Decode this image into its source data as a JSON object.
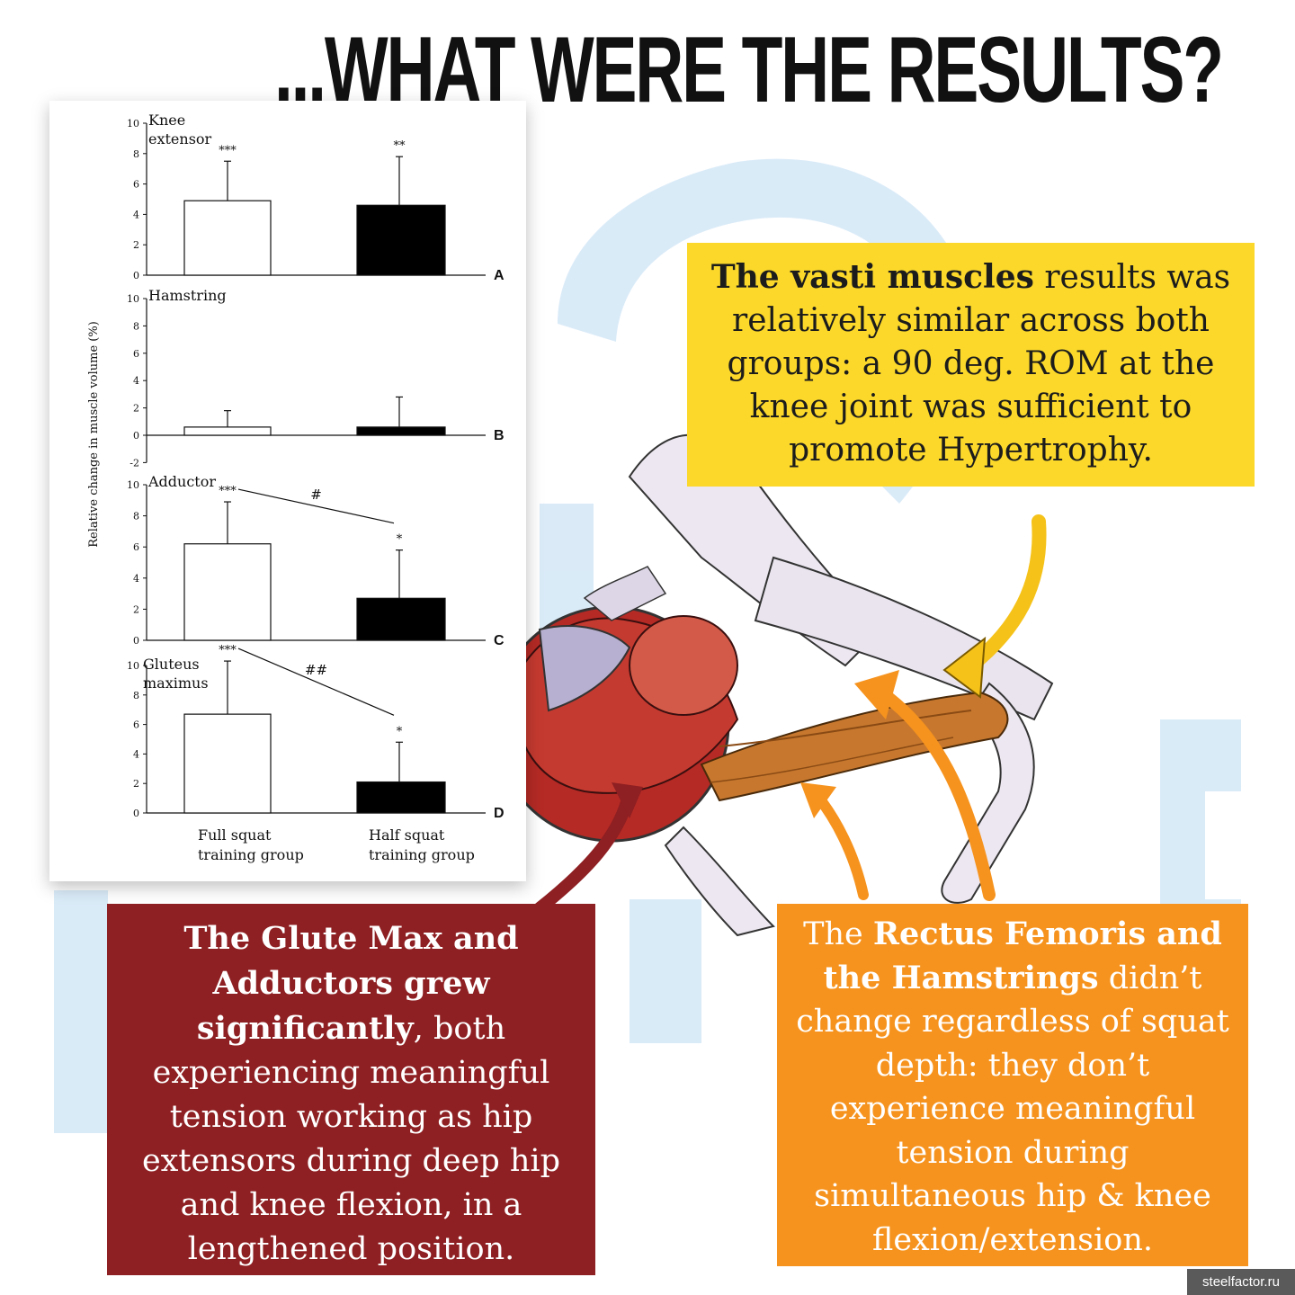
{
  "page": {
    "title": "...WHAT WERE THE RESULTS?"
  },
  "chart_data": {
    "type": "bar",
    "ylabel": "Relative change in muscle volume (%)",
    "categories": [
      "Full squat\ntraining group",
      "Half squat\ntraining group"
    ],
    "panels": [
      {
        "name": "Knee\nextensor",
        "letter": "A",
        "ylim": [
          0,
          10
        ],
        "ticks": [
          "0",
          "2",
          "4",
          "6",
          "8",
          "10"
        ],
        "tick_values": [
          0,
          2,
          4,
          6,
          8,
          10
        ],
        "values": [
          4.9,
          4.6
        ],
        "errors": [
          2.6,
          3.2
        ],
        "stars": [
          "***",
          "**"
        ],
        "comparison": null
      },
      {
        "name": "Hamstring",
        "letter": "B",
        "ylim": [
          -2,
          10
        ],
        "ticks": [
          "-2",
          "0",
          "2",
          "4",
          "6",
          "8",
          "10"
        ],
        "tick_values": [
          -2,
          0,
          2,
          4,
          6,
          8,
          10
        ],
        "values": [
          0.6,
          0.6
        ],
        "errors": [
          1.2,
          2.2
        ],
        "stars": [
          "",
          ""
        ],
        "comparison": null
      },
      {
        "name": "Adductor",
        "letter": "C",
        "ylim": [
          0,
          10
        ],
        "ticks": [
          "0",
          "2",
          "4",
          "6",
          "8",
          "10"
        ],
        "tick_values": [
          0,
          2,
          4,
          6,
          8,
          10
        ],
        "values": [
          6.2,
          2.7
        ],
        "errors": [
          2.7,
          3.1
        ],
        "stars": [
          "***",
          "*"
        ],
        "comparison": "#"
      },
      {
        "name": "Gluteus\nmaximus",
        "letter": "D",
        "ylim": [
          0,
          10
        ],
        "ticks": [
          "0",
          "2",
          "4",
          "6",
          "8",
          "10"
        ],
        "tick_values": [
          0,
          2,
          4,
          6,
          8,
          10
        ],
        "values": [
          6.7,
          2.1
        ],
        "errors": [
          3.6,
          2.7
        ],
        "stars": [
          "***",
          "*"
        ],
        "comparison": "##"
      }
    ]
  },
  "callouts": {
    "vasti": {
      "bold": "The vasti muscles",
      "rest": " results was relatively similar across both groups: a 90 deg. ROM at the knee joint was sufficient to promote Hypertrophy."
    },
    "glute": {
      "bold": "The Glute Max and Adductors grew significantly",
      "rest": ", both experiencing meaningful tension working as hip extensors during deep hip and knee flexion, in a lengthened position."
    },
    "rectus": {
      "pre": "The ",
      "bold": "Rectus Femoris and the Hamstrings",
      "rest": " didn’t change regardless of squat depth: they don’t experience meaningful tension during simultaneous hip & knee flexion/extension."
    }
  },
  "watermark": "steelfactor.ru",
  "colors": {
    "yellow": "#fbd82a",
    "red": "#8e1f22",
    "orange": "#f6931e",
    "watermark_blue": "#d6e9f7"
  }
}
